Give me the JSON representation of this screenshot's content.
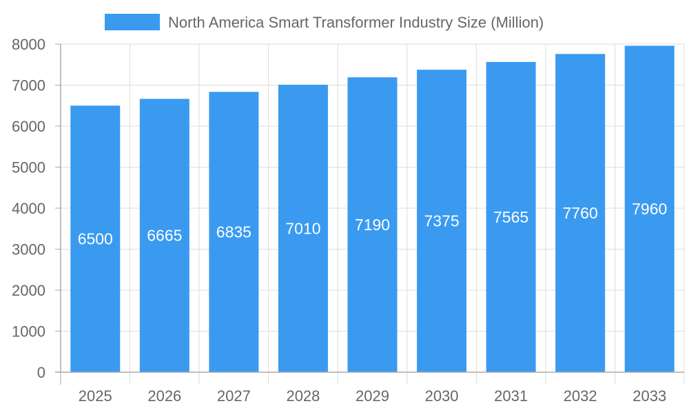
{
  "chart_data": {
    "type": "bar",
    "categories": [
      "2025",
      "2026",
      "2027",
      "2028",
      "2029",
      "2030",
      "2031",
      "2032",
      "2033"
    ],
    "series": [
      {
        "name": "North America Smart Transformer Industry Size (Million)",
        "values": [
          6500,
          6665,
          6835,
          7010,
          7190,
          7375,
          7565,
          7760,
          7960
        ]
      }
    ],
    "title": "",
    "xlabel": "",
    "ylabel": "",
    "ylim": [
      0,
      8000
    ],
    "yticks": [
      0,
      1000,
      2000,
      3000,
      4000,
      5000,
      6000,
      7000,
      8000
    ],
    "grid": true,
    "legend": "top-center",
    "data_labels": true,
    "colors": {
      "bar": "#3a9af0",
      "text": "#666666",
      "grid": "#dddddd",
      "axis": "#aaaaaa",
      "label": "#ffffff"
    }
  }
}
